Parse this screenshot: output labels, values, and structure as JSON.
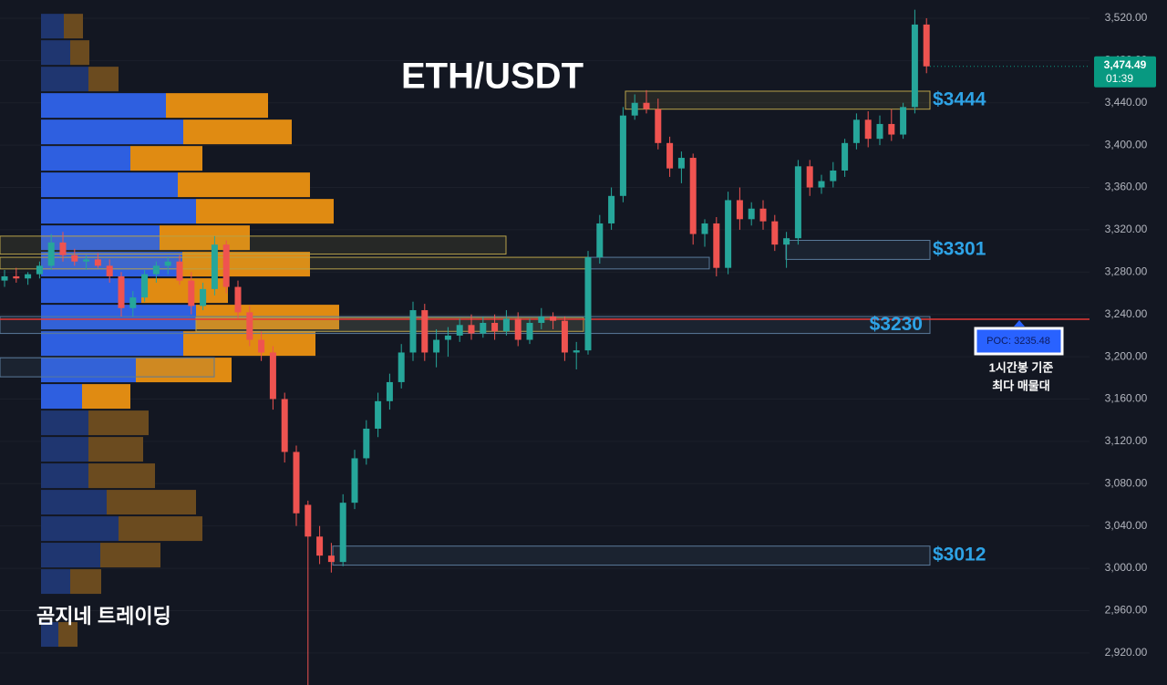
{
  "chart_data": {
    "type": "candlestick",
    "title": "ETH/USDT",
    "watermark": "곰지네 트레이딩",
    "open": [
      3272,
      3276,
      3274,
      3278,
      3286,
      3308,
      3296,
      3290,
      3292,
      3286,
      3276,
      3246,
      3256,
      3278,
      3286,
      3290,
      3272,
      3248,
      3264,
      3306,
      3266,
      3242,
      3216,
      3204,
      3160,
      3110,
      3060,
      3030,
      3012,
      3006,
      3062,
      3104,
      3132,
      3158,
      3176,
      3204,
      3244,
      3204,
      3216,
      3220,
      3230,
      3222,
      3232,
      3224,
      3236,
      3216,
      3232,
      3238,
      3234,
      3204,
      3206,
      3294,
      3326,
      3352,
      3428,
      3440,
      3434,
      3402,
      3378,
      3388,
      3316,
      3326,
      3284,
      3348,
      3330,
      3340,
      3328,
      3306,
      3312,
      3380,
      3360,
      3366,
      3376,
      3402,
      3424,
      3406,
      3420,
      3410,
      3436,
      3514
    ],
    "high": [
      3282,
      3284,
      3280,
      3290,
      3316,
      3318,
      3302,
      3296,
      3298,
      3292,
      3280,
      3262,
      3282,
      3290,
      3294,
      3296,
      3280,
      3270,
      3314,
      3310,
      3272,
      3248,
      3224,
      3210,
      3166,
      3116,
      3064,
      3040,
      3024,
      3070,
      3112,
      3140,
      3166,
      3184,
      3212,
      3252,
      3250,
      3226,
      3228,
      3236,
      3240,
      3238,
      3240,
      3244,
      3242,
      3236,
      3246,
      3242,
      3238,
      3214,
      3300,
      3334,
      3360,
      3436,
      3448,
      3452,
      3444,
      3408,
      3394,
      3392,
      3330,
      3332,
      3356,
      3360,
      3346,
      3348,
      3334,
      3318,
      3386,
      3386,
      3372,
      3384,
      3406,
      3430,
      3432,
      3428,
      3434,
      3440,
      3528,
      3520
    ],
    "low": [
      3266,
      3270,
      3268,
      3274,
      3282,
      3290,
      3286,
      3282,
      3284,
      3270,
      3238,
      3238,
      3252,
      3270,
      3278,
      3268,
      3240,
      3244,
      3258,
      3260,
      3236,
      3210,
      3196,
      3150,
      3100,
      3040,
      2885,
      3004,
      2996,
      3002,
      3056,
      3098,
      3124,
      3150,
      3170,
      3196,
      3196,
      3190,
      3200,
      3214,
      3216,
      3218,
      3216,
      3220,
      3210,
      3212,
      3226,
      3226,
      3196,
      3188,
      3202,
      3288,
      3320,
      3346,
      3424,
      3430,
      3396,
      3370,
      3364,
      3306,
      3304,
      3276,
      3278,
      3320,
      3324,
      3320,
      3300,
      3284,
      3306,
      3352,
      3354,
      3360,
      3370,
      3396,
      3398,
      3400,
      3404,
      3406,
      3430,
      3468
    ],
    "close": [
      3276,
      3274,
      3278,
      3286,
      3308,
      3296,
      3290,
      3292,
      3286,
      3276,
      3246,
      3256,
      3278,
      3286,
      3290,
      3272,
      3248,
      3264,
      3306,
      3266,
      3242,
      3216,
      3204,
      3160,
      3110,
      3052,
      3030,
      3012,
      3006,
      3062,
      3104,
      3132,
      3158,
      3176,
      3204,
      3244,
      3204,
      3216,
      3220,
      3230,
      3222,
      3232,
      3224,
      3236,
      3216,
      3232,
      3238,
      3234,
      3204,
      3206,
      3294,
      3326,
      3352,
      3428,
      3440,
      3434,
      3402,
      3378,
      3388,
      3316,
      3326,
      3284,
      3348,
      3330,
      3340,
      3328,
      3306,
      3312,
      3380,
      3360,
      3366,
      3376,
      3402,
      3424,
      3406,
      3420,
      3410,
      3436,
      3514,
      3474.49
    ],
    "up_color": "#26a69a",
    "down_color": "#ef5350",
    "ylim": [
      2889.7,
      3537.2
    ],
    "yticks": [
      {
        "value": 2920,
        "label": "2,920.00"
      },
      {
        "value": 2960,
        "label": "2,960.00"
      },
      {
        "value": 3000,
        "label": "3,000.00"
      },
      {
        "value": 3040,
        "label": "3,040.00"
      },
      {
        "value": 3080,
        "label": "3,080.00"
      },
      {
        "value": 3120,
        "label": "3,120.00"
      },
      {
        "value": 3160,
        "label": "3,160.00"
      },
      {
        "value": 3200,
        "label": "3,200.00"
      },
      {
        "value": 3240,
        "label": "3,240.00"
      },
      {
        "value": 3280,
        "label": "3,280.00"
      },
      {
        "value": 3320,
        "label": "3,320.00"
      },
      {
        "value": 3360,
        "label": "3,360.00"
      },
      {
        "value": 3400,
        "label": "3,400.00"
      },
      {
        "value": 3440,
        "label": "3,440.00"
      },
      {
        "value": 3480,
        "label": "3,480.00"
      },
      {
        "value": 3520,
        "label": "3,520.00"
      }
    ],
    "grid": true,
    "last_price": {
      "value": 3474.49,
      "label": "3,474.49"
    },
    "countdown": "01:39",
    "last_price_color": "#089981",
    "poc": 3235.48,
    "poc_label": "POC: 3235.48",
    "poc_color": "#e53935",
    "poc_note": [
      "1시간봉 기준",
      "최다 매물대"
    ],
    "label_color": "#2ea3e6",
    "zones": [
      {
        "label": "$3444",
        "top": 3451,
        "bottom": 3434,
        "color": "#b8a24a"
      },
      {
        "label": "$3301",
        "top": 3310,
        "bottom": 3292,
        "color": "#5a7a9a"
      },
      {
        "label": "$3230",
        "top": 3238,
        "bottom": 3222,
        "color": "#5a7a9a"
      },
      {
        "label": "$3012",
        "top": 3021,
        "bottom": 3003,
        "color": "#5a7a9a"
      },
      {
        "top": 3314,
        "bottom": 3297,
        "color": "#b8a24a"
      },
      {
        "top": 3294,
        "bottom": 3283,
        "color": "#b8a24a"
      },
      {
        "top": 3294,
        "bottom": 3283,
        "color": "#5a7a9a"
      },
      {
        "top": 3199,
        "bottom": 3181,
        "color": "#5a7a9a"
      },
      {
        "top": 3237,
        "bottom": 3224,
        "color": "#b8a24a"
      }
    ],
    "volume_profile": {
      "levels": [
        3512.5,
        3487.5,
        3462.5,
        3437.5,
        3412.5,
        3387.5,
        3362.5,
        3337.5,
        3312.5,
        3287.5,
        3262.5,
        3237.5,
        3212.5,
        3187.5,
        3162.5,
        3137.5,
        3112.5,
        3087.5,
        3062.5,
        3037.5,
        3012.5,
        2987.5,
        2937.5
      ],
      "buy": [
        25,
        32,
        52,
        137,
        156,
        98,
        150,
        170,
        130,
        155,
        110,
        170,
        156,
        104,
        45,
        52,
        52,
        52,
        72,
        85,
        65,
        32,
        19
      ],
      "sell": [
        21,
        21,
        33,
        112,
        119,
        79,
        145,
        151,
        99,
        140,
        95,
        157,
        145,
        105,
        53,
        66,
        60,
        73,
        98,
        92,
        66,
        34,
        21
      ],
      "buy_color": "#2e5fe0",
      "sell_color": "#e08b12",
      "outside_buy_color": "#1f3670",
      "outside_sell_color": "#6b4b1f",
      "value_area": [
        3150,
        3450
      ]
    }
  }
}
